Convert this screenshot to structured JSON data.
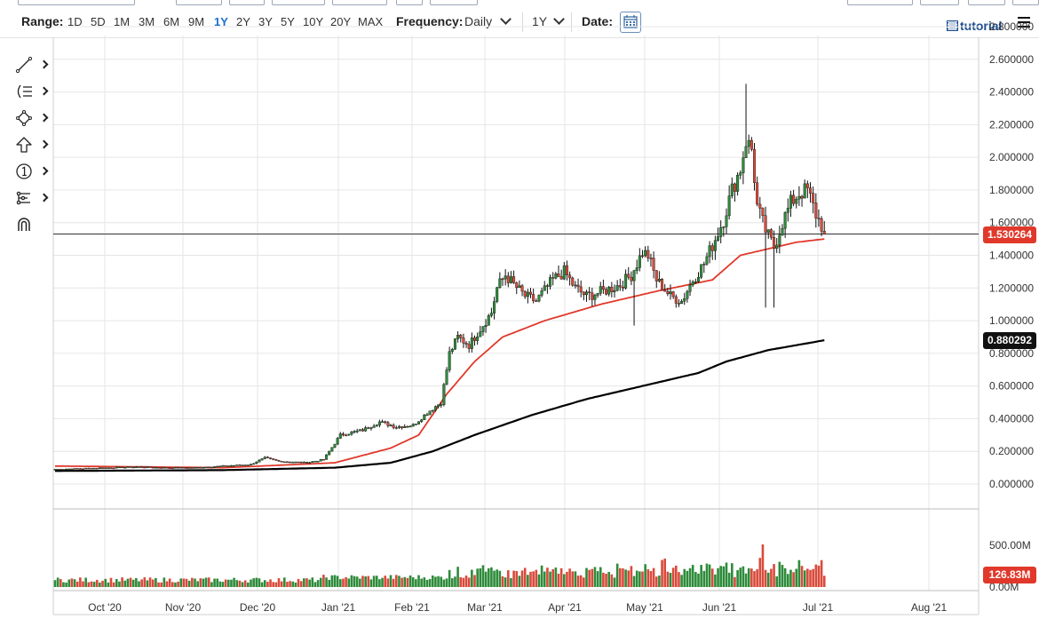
{
  "toolbar": {
    "range_label": "Range:",
    "ranges": [
      "1D",
      "5D",
      "1M",
      "3M",
      "6M",
      "9M",
      "1Y",
      "2Y",
      "3Y",
      "5Y",
      "10Y",
      "20Y",
      "MAX"
    ],
    "active_range": "1Y",
    "frequency_label": "Frequency:",
    "frequency_value": "Daily",
    "period_value": "1Y",
    "date_label": "Date:",
    "tutorial_label": "tutorial"
  },
  "sidebar_tools": [
    "line-draw-icon",
    "fibonacci-icon",
    "shape-icon",
    "arrow-up-icon",
    "annotation-number-icon",
    "measure-icon",
    "magnet-icon"
  ],
  "colors": {
    "up": "#2e8b3a",
    "down": "#d94a3b",
    "ma_fast": "#e0392b",
    "ma_slow": "#000000",
    "accent": "#1a6fd1",
    "last_price_tag": "#e0392b",
    "ma_slow_tag": "#111111"
  },
  "price_axis_labels": [
    "2.800000",
    "2.600000",
    "2.400000",
    "2.200000",
    "2.000000",
    "1.800000",
    "1.600000",
    "1.400000",
    "1.200000",
    "1.000000",
    "0.800000",
    "0.600000",
    "0.400000",
    "0.200000",
    "0.000000"
  ],
  "volume_axis_labels": [
    "500.00M",
    "0.00M"
  ],
  "x_axis_labels": [
    "Oct '20",
    "Nov '20",
    "Dec '20",
    "Jan '21",
    "Feb '21",
    "Mar '21",
    "Apr '21",
    "May '21",
    "Jun '21",
    "Jul '21",
    "Aug '21"
  ],
  "last_price_tag": "1.530264",
  "ma_slow_tag": "0.880292",
  "volume_tag": "126.83M",
  "chart_data": {
    "type": "candlestick",
    "ylim": [
      0,
      2.8
    ],
    "last_price": 1.530264,
    "ma_slow_last": 0.880292,
    "volume_last": "126.83M",
    "price_path": [
      [
        0,
        0.09
      ],
      [
        10,
        0.095
      ],
      [
        20,
        0.1
      ],
      [
        30,
        0.105
      ],
      [
        40,
        0.1
      ],
      [
        50,
        0.1
      ],
      [
        60,
        0.11
      ],
      [
        70,
        0.12
      ],
      [
        75,
        0.16
      ],
      [
        80,
        0.14
      ],
      [
        90,
        0.13
      ],
      [
        96,
        0.15
      ],
      [
        102,
        0.3
      ],
      [
        110,
        0.33
      ],
      [
        116,
        0.38
      ],
      [
        122,
        0.35
      ],
      [
        128,
        0.36
      ],
      [
        134,
        0.45
      ],
      [
        138,
        0.5
      ],
      [
        141,
        0.8
      ],
      [
        144,
        0.9
      ],
      [
        148,
        0.85
      ],
      [
        152,
        0.95
      ],
      [
        156,
        1.05
      ],
      [
        158,
        1.2
      ],
      [
        161,
        1.28
      ],
      [
        164,
        1.22
      ],
      [
        168,
        1.15
      ],
      [
        172,
        1.12
      ],
      [
        178,
        1.25
      ],
      [
        182,
        1.3
      ],
      [
        186,
        1.2
      ],
      [
        190,
        1.15
      ],
      [
        196,
        1.18
      ],
      [
        202,
        1.22
      ],
      [
        206,
        1.28
      ],
      [
        210,
        1.42
      ],
      [
        212,
        1.4
      ],
      [
        215,
        1.25
      ],
      [
        220,
        1.15
      ],
      [
        224,
        1.12
      ],
      [
        228,
        1.25
      ],
      [
        232,
        1.35
      ],
      [
        236,
        1.5
      ],
      [
        239,
        1.62
      ],
      [
        242,
        1.8
      ],
      [
        245,
        1.93
      ],
      [
        247,
        2.1
      ],
      [
        249,
        2.05
      ],
      [
        251,
        1.7
      ],
      [
        254,
        1.55
      ],
      [
        257,
        1.45
      ],
      [
        260,
        1.6
      ],
      [
        263,
        1.72
      ],
      [
        266,
        1.78
      ],
      [
        269,
        1.8
      ],
      [
        272,
        1.65
      ],
      [
        275,
        1.55
      ]
    ],
    "ma_fast_path": [
      [
        0,
        0.11
      ],
      [
        60,
        0.1
      ],
      [
        100,
        0.13
      ],
      [
        120,
        0.22
      ],
      [
        130,
        0.3
      ],
      [
        140,
        0.55
      ],
      [
        150,
        0.75
      ],
      [
        160,
        0.9
      ],
      [
        175,
        1.0
      ],
      [
        195,
        1.1
      ],
      [
        215,
        1.18
      ],
      [
        235,
        1.25
      ],
      [
        245,
        1.4
      ],
      [
        255,
        1.44
      ],
      [
        265,
        1.48
      ],
      [
        275,
        1.5
      ]
    ],
    "ma_slow_path": [
      [
        0,
        0.08
      ],
      [
        60,
        0.085
      ],
      [
        100,
        0.1
      ],
      [
        120,
        0.13
      ],
      [
        135,
        0.2
      ],
      [
        150,
        0.3
      ],
      [
        170,
        0.42
      ],
      [
        190,
        0.52
      ],
      [
        210,
        0.6
      ],
      [
        230,
        0.68
      ],
      [
        240,
        0.75
      ],
      [
        255,
        0.82
      ],
      [
        275,
        0.88
      ]
    ]
  }
}
